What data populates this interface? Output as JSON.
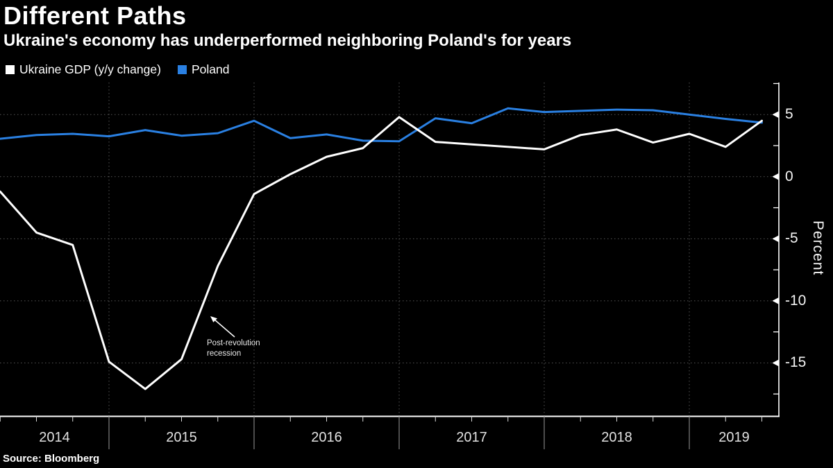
{
  "header": {
    "title": "Different Paths",
    "subtitle": "Ukraine's economy has underperformed neighboring Poland's for years"
  },
  "legend": {
    "items": [
      {
        "label": "Ukraine GDP (y/y change)",
        "color": "#ffffff"
      },
      {
        "label": "Poland",
        "color": "#2a80e2"
      }
    ]
  },
  "axes": {
    "y": {
      "title": "Percent",
      "ticks": [
        {
          "label": "5",
          "value": 5
        },
        {
          "label": "0",
          "value": 0
        },
        {
          "label": "-5",
          "value": -5
        },
        {
          "label": "-10",
          "value": -10
        },
        {
          "label": "-15",
          "value": -15
        }
      ],
      "minor_ticks": [
        7.5,
        2.5,
        -2.5,
        -7.5,
        -12.5,
        -17.5
      ]
    },
    "x": {
      "year_labels": [
        "2014",
        "2015",
        "2016",
        "2017",
        "2018",
        "2019"
      ],
      "separator_quarter_indices": [
        3,
        7,
        11,
        15,
        19
      ]
    }
  },
  "annotation": {
    "line1": "Post-revolution",
    "line2": "recession"
  },
  "footer": {
    "source": "Source: Bloomberg"
  },
  "colors": {
    "background": "#000000",
    "foreground": "#ffffff",
    "poland_blue": "#2a80e2",
    "grid": "#565656",
    "year_tick": "#9a9a9a",
    "quarter_tick": "#dddddd"
  },
  "chart_data": {
    "type": "line",
    "title": "Different Paths",
    "subtitle": "Ukraine's economy has underperformed neighboring Poland's for years",
    "xlabel": "",
    "ylabel": "Percent",
    "ylim": [
      -19,
      7.5
    ],
    "grid": "dotted horizontal lines every 5 units; dotted vertical lines at year boundaries",
    "legend_position": "top-left",
    "x": [
      "2014 Q1",
      "2014 Q2",
      "2014 Q3",
      "2014 Q4",
      "2015 Q1",
      "2015 Q2",
      "2015 Q3",
      "2015 Q4",
      "2016 Q1",
      "2016 Q2",
      "2016 Q3",
      "2016 Q4",
      "2017 Q1",
      "2017 Q2",
      "2017 Q3",
      "2017 Q4",
      "2018 Q1",
      "2018 Q2",
      "2018 Q3",
      "2018 Q4",
      "2019 Q1",
      "2019 Q2"
    ],
    "series": [
      {
        "name": "Ukraine GDP (y/y change)",
        "color": "#ffffff",
        "values": [
          -1.2,
          -4.5,
          -5.5,
          -14.9,
          -17.1,
          -14.7,
          -7.2,
          -1.4,
          0.2,
          1.6,
          2.3,
          4.8,
          2.8,
          2.6,
          2.4,
          2.2,
          3.35,
          3.8,
          2.75,
          3.45,
          2.4,
          4.5
        ]
      },
      {
        "name": "Poland",
        "color": "#2a80e2",
        "values": [
          3.05,
          3.35,
          3.45,
          3.25,
          3.75,
          3.3,
          3.5,
          4.5,
          3.1,
          3.4,
          2.9,
          2.85,
          4.7,
          4.3,
          5.5,
          5.2,
          5.3,
          5.4,
          5.35,
          5.0,
          4.65,
          4.35
        ]
      }
    ]
  }
}
